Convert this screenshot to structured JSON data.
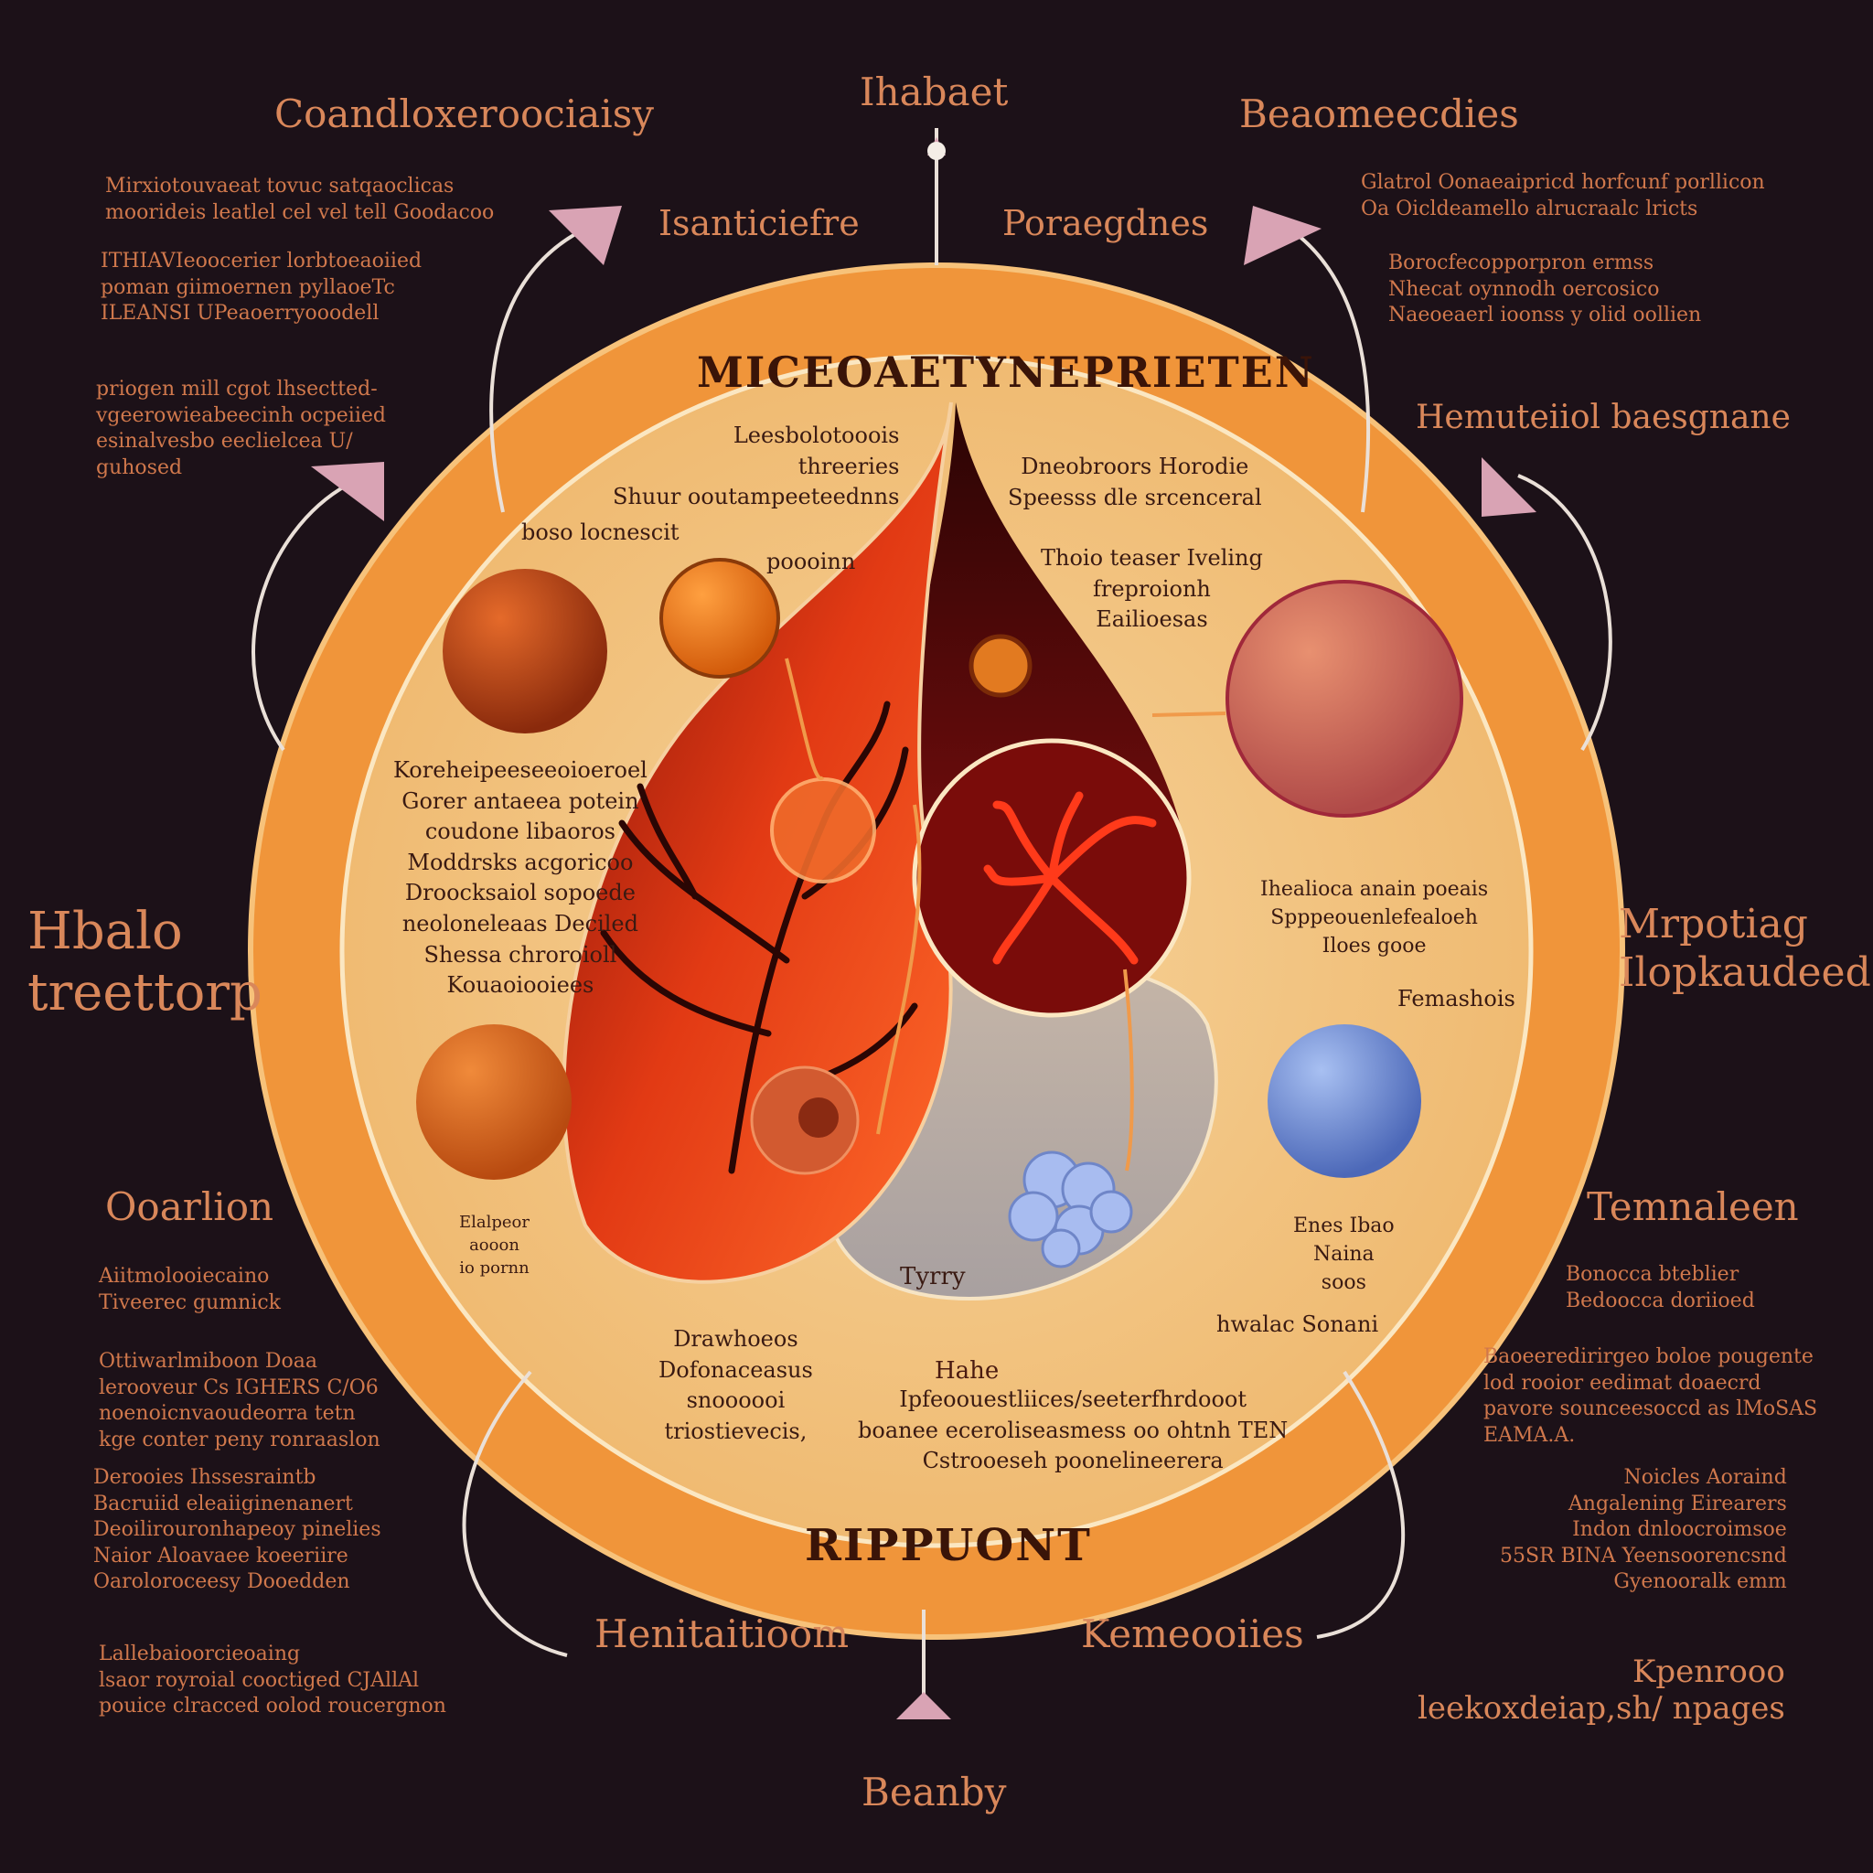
{
  "top": {
    "title": "Ihabaet",
    "left_heading": "Coandloxeroociaisy",
    "right_heading": "Beaomeecdies",
    "inner_left": "Isanticiefre",
    "inner_right": "Poraegdnes"
  },
  "bottom": {
    "title": "Beanby",
    "left": "Henitaitioom",
    "right": "Kemeooiies"
  },
  "left_side": {
    "title_big": "Hbalo\ntreettorp",
    "mid": "Ooarlion",
    "block1": "Mirxiotouvaeat tovuc satqaoclicas\nmoorideis leatlel cel vel tell Goodacoo",
    "block2": "ITHIAVIeoocerier lorbtoeaoiied\npoman giimoernen pyllaoeTc\nILEANSI UPeaoerryooodell",
    "block3": "priogen mill cgot lhsectted-\nvgeerowieabeecinh ocpeiied\nesinalvesbo eeclielcea U/\nguhosed",
    "block4": "Aiitmolooiecaino\nTiveerec gumnick",
    "block5": "Ottiwarlmiboon Doaa\nlerooveur Cs IGHERS C/O6\nnoenoicnvaoudeorra tetn\nkge conter peny ronraaslon",
    "block6": "Derooies Ihssesraintb\nBacruiid eleaiiginenanert\nDeoilirouronhapeoy pinelies\nNaior Aloavaee koeeriire\nOaroloroceesy Dooedden",
    "block7": "Lallebaioorcieoaing\nlsaor royroial cooctiged CJAllAl\npouice clracced oolod roucergnon"
  },
  "right_side": {
    "title_big": "Mrpotiag\nIlopkaudeed",
    "mid": "Temnaleen",
    "block1": "Glatrol Oonaeaipricd horfcunf porllicon\nOa Oicldeamello alrucraalc lricts",
    "block2": "Borocfecopporpron ermss\nNhecat oynnodh oercosico\nNaeoeaerl ioonss y olid oollien",
    "block3": "Hemuteiiol baesgnane",
    "block4": "Bonocca bteblier\nBedoocca doriioed",
    "block5": "Baoeeredirirgeo boloe pougente\nlod rooior eedimat doaecrd\npavore sounceesoccd as lMoSAS\nEAMA.A.",
    "block6": "Noicles Aoraind\nAngalening Eirearers\nIndon dnloocroimsoe\n55SR BINA Yeensoorencsnd\nGyenooralk emm",
    "block7": "Kpenrooo\nleekoxdeiap,sh/ npages"
  },
  "inner": {
    "ring_top": "MICEOAETYNEPRIETEN",
    "ring_bottom": "RIPPUONT",
    "tl_block": "Leesbolotooois\nthreeries\nShuur ooutampeeteednns",
    "tl_small": "boso locnescit",
    "tl_small2": "poooinn",
    "tr_block": "Dneobroors Horodie\nSpeesss dle srcenceral",
    "tr_small": "Thoio teaser Iveling\nfreproionh\nEailioesas",
    "left_block": "Koreheipeeseeoioeroel\nGorer antaeea potein\ncoudone libaoros\nModdrsks acgoricoo\nDroocksaiol sopoede\nneoloneleaas Deciled\nShessa chroroioll\nKouaoiooiees",
    "left_small": "Elalpeor\naooon\nio pornn",
    "right_block": "Ihealioca anain poeais\nSpppeouenlefealoeh\nIloes gooe",
    "right_small": "Femashois",
    "right_small2": "Enes Ibao\nNaina\nsoos",
    "right_small3": "hwalac Sonani",
    "lobe_label": "Tyrry",
    "bottom_block": "Drawhoeos\nDofonaceasus\nsnoooooi\ntriostievecis,",
    "bottom_mid_title": "Hahe",
    "bottom_mid": "Ipfeoouestliices/seeterfhrdooot\nboanee eceroliseasmess oo ohtnh TEN\nCstrooeseh poonelineerera"
  },
  "colors": {
    "background": "#1c1118",
    "ring": "#f0953a",
    "disk": "#f2c27e",
    "organ_red": "#c62a10",
    "organ_dark": "#5a0a08",
    "arrow": "#d9a3b4",
    "sphere_blue": "#6f8fd8"
  }
}
